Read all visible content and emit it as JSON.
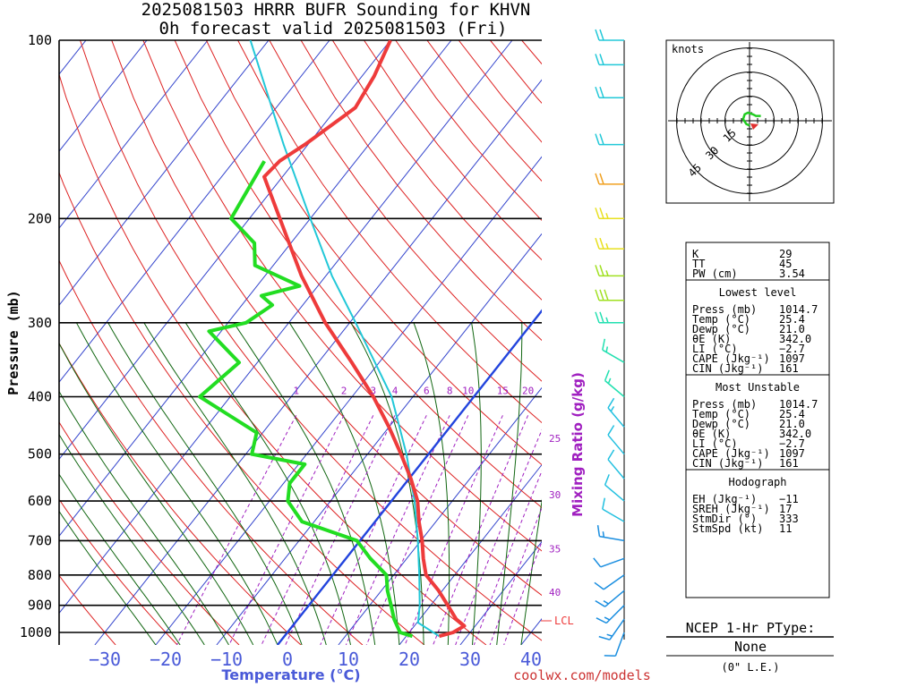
{
  "title": {
    "line1": "2025081503 HRRR BUFR Sounding for KHVN",
    "line2": "0h forecast valid 2025081503 (Fri)"
  },
  "footer": {
    "site": "coolwx.com/models"
  },
  "chart_data": {
    "type": "skew-t",
    "xlabel": "Temperature (°C)",
    "ylabel": "Pressure (mb)",
    "x_ticks": [
      -30,
      -20,
      -10,
      0,
      10,
      20,
      30,
      40
    ],
    "pressure_ticks": [
      100,
      200,
      300,
      400,
      500,
      600,
      700,
      800,
      900,
      1000
    ],
    "pressure_range": [
      100,
      1050
    ],
    "mixing_ratio": {
      "label": "Mixing Ratio (g/kg)",
      "values": [
        "1",
        "2",
        "3",
        "4",
        "6",
        "8",
        "10",
        "15",
        "20"
      ],
      "side_values": [
        "25",
        "30",
        "35",
        "40"
      ]
    },
    "lcl_label": "LCL",
    "lcl_pressure": 963,
    "temperature_profile": [
      {
        "p": 1014.7,
        "t": 25.4
      },
      {
        "p": 1000,
        "t": 27.2
      },
      {
        "p": 975,
        "t": 28.2
      },
      {
        "p": 950,
        "t": 26.0
      },
      {
        "p": 900,
        "t": 22.8
      },
      {
        "p": 850,
        "t": 19.4
      },
      {
        "p": 800,
        "t": 15.3
      },
      {
        "p": 750,
        "t": 12.7
      },
      {
        "p": 700,
        "t": 10.2
      },
      {
        "p": 650,
        "t": 7.2
      },
      {
        "p": 600,
        "t": 4.3
      },
      {
        "p": 550,
        "t": 0.3
      },
      {
        "p": 500,
        "t": -4.5
      },
      {
        "p": 450,
        "t": -10.0
      },
      {
        "p": 400,
        "t": -16.5
      },
      {
        "p": 350,
        "t": -24.5
      },
      {
        "p": 300,
        "t": -34.0
      },
      {
        "p": 250,
        "t": -44.0
      },
      {
        "p": 200,
        "t": -55.0
      },
      {
        "p": 170,
        "t": -63.0
      },
      {
        "p": 160,
        "t": -62.5
      },
      {
        "p": 150,
        "t": -60.5
      },
      {
        "p": 130,
        "t": -57.0
      },
      {
        "p": 115,
        "t": -58.0
      },
      {
        "p": 100,
        "t": -60.0
      }
    ],
    "dewpoint_profile": [
      {
        "p": 1014.7,
        "t": 21.0
      },
      {
        "p": 1000,
        "t": 18.5
      },
      {
        "p": 950,
        "t": 15.8
      },
      {
        "p": 900,
        "t": 13.5
      },
      {
        "p": 850,
        "t": 11.0
      },
      {
        "p": 800,
        "t": 8.8
      },
      {
        "p": 750,
        "t": 4.0
      },
      {
        "p": 700,
        "t": -0.5
      },
      {
        "p": 650,
        "t": -12.0
      },
      {
        "p": 600,
        "t": -17.0
      },
      {
        "p": 560,
        "t": -19.0
      },
      {
        "p": 520,
        "t": -19.0
      },
      {
        "p": 500,
        "t": -29.0
      },
      {
        "p": 460,
        "t": -31.0
      },
      {
        "p": 400,
        "t": -45.0
      },
      {
        "p": 350,
        "t": -43.0
      },
      {
        "p": 310,
        "t": -52.0
      },
      {
        "p": 300,
        "t": -47.0
      },
      {
        "p": 280,
        "t": -45.0
      },
      {
        "p": 270,
        "t": -48.0
      },
      {
        "p": 260,
        "t": -43.0
      },
      {
        "p": 240,
        "t": -53.0
      },
      {
        "p": 220,
        "t": -56.0
      },
      {
        "p": 200,
        "t": -63.0
      },
      {
        "p": 160,
        "t": -65.0
      }
    ],
    "parcel_profile": [
      {
        "p": 1014.7,
        "t": 25.4
      },
      {
        "p": 963,
        "t": 20.2
      },
      {
        "p": 900,
        "t": 18.2
      },
      {
        "p": 800,
        "t": 14.2
      },
      {
        "p": 700,
        "t": 9.5
      },
      {
        "p": 600,
        "t": 3.8
      },
      {
        "p": 500,
        "t": -3.6
      },
      {
        "p": 400,
        "t": -13.5
      },
      {
        "p": 300,
        "t": -29.0
      },
      {
        "p": 250,
        "t": -39.0
      },
      {
        "p": 200,
        "t": -50.0
      },
      {
        "p": 150,
        "t": -64.0
      },
      {
        "p": 100,
        "t": -83.0
      }
    ],
    "wind_barbs": [
      {
        "p": 1000,
        "dir": 200,
        "spd": 10
      },
      {
        "p": 950,
        "dir": 215,
        "spd": 15
      },
      {
        "p": 900,
        "dir": 225,
        "spd": 15
      },
      {
        "p": 850,
        "dir": 230,
        "spd": 15
      },
      {
        "p": 800,
        "dir": 235,
        "spd": 10
      },
      {
        "p": 750,
        "dir": 250,
        "spd": 10
      },
      {
        "p": 700,
        "dir": 280,
        "spd": 15
      },
      {
        "p": 650,
        "dir": 300,
        "spd": 10
      },
      {
        "p": 600,
        "dir": 310,
        "spd": 10
      },
      {
        "p": 550,
        "dir": 320,
        "spd": 10
      },
      {
        "p": 500,
        "dir": 320,
        "spd": 10
      },
      {
        "p": 450,
        "dir": 320,
        "spd": 15
      },
      {
        "p": 400,
        "dir": 310,
        "spd": 15
      },
      {
        "p": 350,
        "dir": 300,
        "spd": 15
      },
      {
        "p": 300,
        "dir": 270,
        "spd": 25
      },
      {
        "p": 275,
        "dir": 270,
        "spd": 30
      },
      {
        "p": 250,
        "dir": 270,
        "spd": 25
      },
      {
        "p": 225,
        "dir": 270,
        "spd": 25
      },
      {
        "p": 200,
        "dir": 270,
        "spd": 25
      },
      {
        "p": 175,
        "dir": 270,
        "spd": 20
      },
      {
        "p": 150,
        "dir": 270,
        "spd": 20
      },
      {
        "p": 125,
        "dir": 270,
        "spd": 20
      },
      {
        "p": 110,
        "dir": 270,
        "spd": 20
      },
      {
        "p": 100,
        "dir": 270,
        "spd": 20
      }
    ],
    "hodograph": {
      "units_label": "knots",
      "ring_labels": [
        "15",
        "30",
        "45"
      ],
      "path": [
        [
          0,
          6
        ],
        [
          -4,
          4
        ],
        [
          -8,
          -2
        ],
        [
          -6,
          -8
        ],
        [
          -2,
          -10
        ],
        [
          4,
          -8
        ],
        [
          8,
          -6
        ],
        [
          14,
          -6
        ]
      ],
      "storm_motion": {
        "dir": 333,
        "spd": 11
      }
    },
    "indices": {
      "top": [
        {
          "label": "K",
          "value": "29"
        },
        {
          "label": "TT",
          "value": "45"
        },
        {
          "label": "PW (cm)",
          "value": "3.54"
        }
      ],
      "lowest_level": {
        "heading": "Lowest level",
        "rows": [
          {
            "label": "Press (mb)",
            "value": "1014.7"
          },
          {
            "label": "Temp (°C)",
            "value": "25.4"
          },
          {
            "label": "Dewp (°C)",
            "value": "21.0"
          },
          {
            "label": "θE (K)",
            "value": "342.0"
          },
          {
            "label": "LI (°C)",
            "value": "−2.7"
          },
          {
            "label": "CAPE (Jkg⁻¹)",
            "value": "1097"
          },
          {
            "label": "CIN (Jkg⁻¹)",
            "value": "161"
          }
        ]
      },
      "most_unstable": {
        "heading": "Most Unstable",
        "rows": [
          {
            "label": "Press (mb)",
            "value": "1014.7"
          },
          {
            "label": "Temp (°C)",
            "value": "25.4"
          },
          {
            "label": "Dewp (°C)",
            "value": "21.0"
          },
          {
            "label": "θE (K)",
            "value": "342.0"
          },
          {
            "label": "LI (°C)",
            "value": "−2.7"
          },
          {
            "label": "CAPE (Jkg⁻¹)",
            "value": "1097"
          },
          {
            "label": "CIN (Jkg⁻¹)",
            "value": "161"
          }
        ]
      },
      "hodograph": {
        "heading": "Hodograph",
        "rows": [
          {
            "label": "EH (Jkg⁻¹)",
            "value": "−11"
          },
          {
            "label": "SREH (Jkg⁻¹)",
            "value": "17"
          },
          {
            "label": "StmDir (°)",
            "value": "333"
          },
          {
            "label": "StmSpd (kt)",
            "value": "11"
          }
        ]
      }
    },
    "ptype": {
      "heading": "NCEP 1-Hr PType:",
      "value": "None",
      "note": "(0\" L.E.)"
    },
    "colors": {
      "temperature": "#ee3b3b",
      "dewpoint": "#22dd22",
      "parcel": "#22c8d8",
      "freezing": "#2244dd",
      "isotherm": "#3344cc",
      "dry_adiabat": "#dd2222",
      "moist_adiabat": "#116611",
      "mixing_ratio": "#a020c0"
    }
  }
}
